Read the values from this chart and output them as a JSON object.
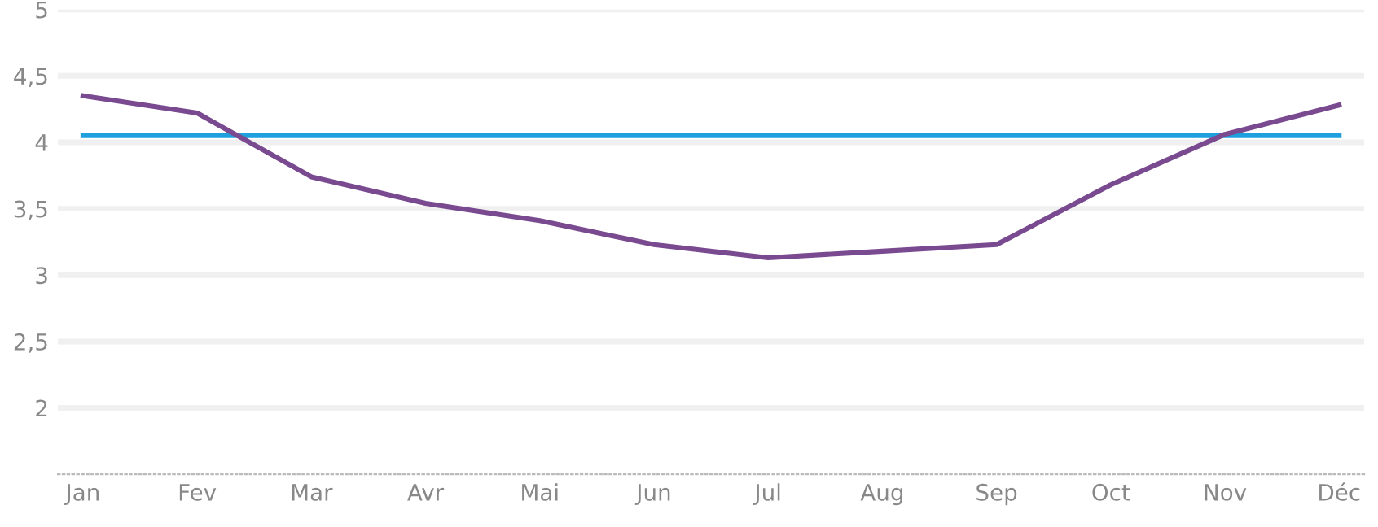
{
  "chart_data": {
    "type": "line",
    "categories": [
      "Jan",
      "Fev",
      "Mar",
      "Avr",
      "Mai",
      "Jun",
      "Jul",
      "Aug",
      "Sep",
      "Oct",
      "Nov",
      "Déc"
    ],
    "series": [
      {
        "color": "#1ea0df",
        "values": [
          4.05,
          4.05,
          4.05,
          4.05,
          4.05,
          4.05,
          4.05,
          4.05,
          4.05,
          4.05,
          4.05,
          4.05
        ]
      },
      {
        "color": "#7a4a90",
        "values": [
          4.35,
          4.22,
          3.74,
          3.54,
          3.41,
          3.23,
          3.13,
          3.18,
          3.23,
          3.68,
          4.06,
          4.28
        ]
      }
    ],
    "ylim": [
      1.5,
      5
    ],
    "yticks": [
      {
        "value": 2,
        "label": "2"
      },
      {
        "value": 2.5,
        "label": "2,5"
      },
      {
        "value": 3,
        "label": "3"
      },
      {
        "value": 3.5,
        "label": "3,5"
      },
      {
        "value": 4,
        "label": "4"
      },
      {
        "value": 4.5,
        "label": "4,5"
      },
      {
        "value": 5,
        "label": "5"
      }
    ],
    "grid": "y",
    "legend": false,
    "marker": "none",
    "line_style": "solid"
  }
}
